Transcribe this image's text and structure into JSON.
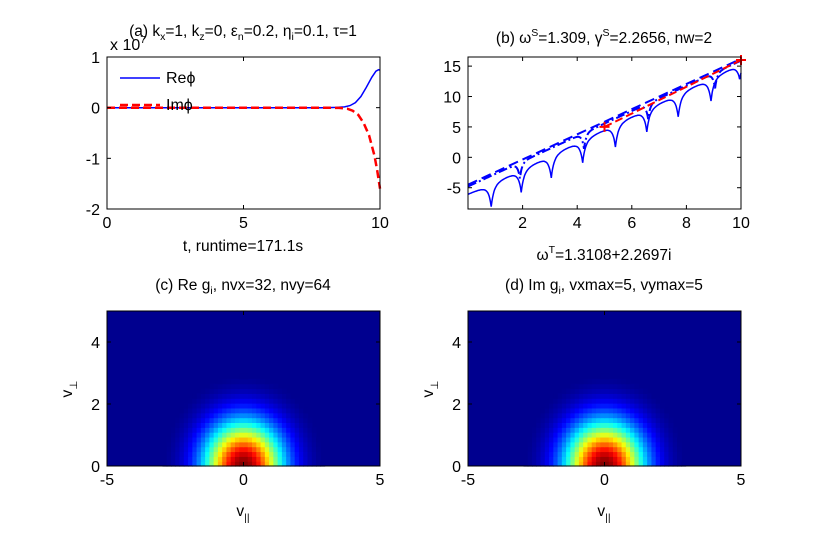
{
  "colors": {
    "re": "#0000ff",
    "im": "#ff0000",
    "markers": "#ff0000"
  },
  "panel_a": {
    "title": {
      "p1": "(a) k",
      "s1": "x",
      "p2": "=1, k",
      "s2": "z",
      "p3": "=0, ε",
      "s3": "n",
      "p4": "=0.2, η",
      "s4": "i",
      "p5": "=0.1, τ=1"
    },
    "exponent": "x 10",
    "exponent_power": "7",
    "xlabel": "t, runtime=171.1s",
    "legend": [
      "Reϕ",
      "Imϕ"
    ]
  },
  "panel_b": {
    "title": {
      "p1": "(b) ω",
      "s1": "S",
      "p2": "=1.309, γ",
      "s2": "S",
      "p3": "=2.2656, nw=2"
    },
    "xlabel": {
      "p1": "ω",
      "s1": "T",
      "p2": "=1.3108+2.2697i"
    }
  },
  "panel_c": {
    "title": {
      "p1": "(c) Re g",
      "s1": "i",
      "p2": ", nvx=32, nvy=64"
    },
    "xlabel": {
      "p1": "v",
      "s1": "||"
    },
    "ylabel": {
      "p1": "v",
      "s1": "⊥"
    }
  },
  "panel_d": {
    "title": {
      "p1": "(d) Im g",
      "s1": "i",
      "p2": ", vxmax=5, vymax=5"
    },
    "xlabel": {
      "p1": "v",
      "s1": "||"
    },
    "ylabel": {
      "p1": "v",
      "s1": "⊥"
    }
  },
  "chart_data": [
    {
      "type": "line",
      "xlim": [
        0,
        10
      ],
      "ylim": [
        -2,
        1
      ],
      "xticks": [
        0,
        5,
        10
      ],
      "yticks": [
        -2,
        -1,
        0,
        1
      ],
      "grid": false,
      "legend_position": "top-left",
      "series": [
        {
          "name": "Reϕ",
          "style": "solid",
          "x": [
            0,
            8,
            8.4,
            8.7,
            8.9,
            9.1,
            9.3,
            9.5,
            9.7,
            9.85,
            9.95,
            10
          ],
          "y": [
            0,
            0,
            0.005,
            0.015,
            0.04,
            0.1,
            0.22,
            0.4,
            0.6,
            0.72,
            0.75,
            0.74
          ]
        },
        {
          "name": "Imϕ",
          "style": "dashed",
          "x": [
            0,
            8,
            8.5,
            8.8,
            9.0,
            9.2,
            9.4,
            9.6,
            9.8,
            9.9,
            10
          ],
          "y": [
            0,
            0,
            -0.005,
            -0.02,
            -0.06,
            -0.14,
            -0.3,
            -0.55,
            -0.95,
            -1.25,
            -1.6
          ]
        }
      ]
    },
    {
      "type": "line",
      "xlim": [
        0,
        10
      ],
      "ylim": [
        -8.5,
        16.5
      ],
      "xticks": [
        2,
        4,
        6,
        8,
        10
      ],
      "yticks": [
        -5,
        0,
        5,
        10,
        15
      ],
      "grid": false,
      "series": [
        {
          "style": "solid",
          "x": [
            0,
            10
          ],
          "y": [
            -6.0,
            15.6
          ],
          "notch_x": [
            0.85,
            1.95,
            3.05,
            4.2,
            5.4,
            6.55,
            7.7,
            8.9,
            9.95
          ],
          "notch_depth": [
            3,
            3,
            3,
            3,
            3,
            3,
            3,
            3,
            2
          ]
        },
        {
          "style": "dashed",
          "x": [
            0,
            10
          ],
          "y": [
            -4.5,
            16.2
          ]
        },
        {
          "style": "dashdot",
          "x": [
            0,
            10
          ],
          "y": [
            -4.8,
            15.9
          ],
          "notch_x": [
            1.9,
            4.25,
            6.6,
            9.05
          ]
        }
      ],
      "markers": {
        "symbol": "+",
        "points": [
          [
            5,
            5
          ],
          [
            10,
            16
          ]
        ]
      }
    },
    {
      "type": "heatmap",
      "xlim": [
        -5,
        5
      ],
      "ylim": [
        0,
        5
      ],
      "xticks": [
        -5,
        0,
        5
      ],
      "yticks": [
        0,
        2,
        4
      ],
      "colormap": "jet",
      "function": "exp(-(vx^2+vy^2)/2)"
    },
    {
      "type": "heatmap",
      "xlim": [
        -5,
        5
      ],
      "ylim": [
        0,
        5
      ],
      "xticks": [
        -5,
        0,
        5
      ],
      "yticks": [
        0,
        2,
        4
      ],
      "colormap": "jet",
      "function": "exp(-(vx^2+vy^2)/2)"
    }
  ]
}
